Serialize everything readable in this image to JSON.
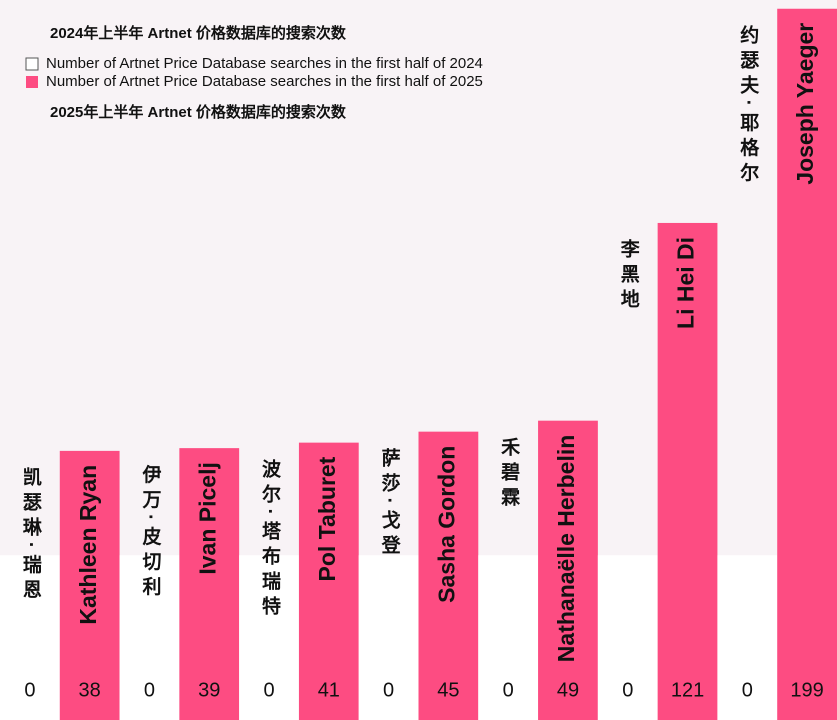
{
  "chart_data": {
    "type": "bar",
    "annotations": [
      "2024年上半年 Artnet 价格数据库的搜索次数",
      "2025年上半年 Artnet 价格数据库的搜索次数"
    ],
    "categories": [
      "Kathleen Ryan",
      "Ivan Picelj",
      "Pol Taburet",
      "Sasha Gordon",
      "Nathanaëlle Herbelin",
      "Li Hei Di",
      "Joseph Yaeger"
    ],
    "category_labels_zh": [
      "凯瑟琳·瑞恩",
      "伊万·皮切利",
      "波尔·塔布瑞特",
      "萨莎·戈登",
      "禾碧霖",
      "李黑地",
      "约瑟夫·耶格尔"
    ],
    "series": [
      {
        "name": "Number of Artnet Price Database searches in the first half of 2024",
        "color": "#ffffff",
        "values": [
          0,
          0,
          0,
          0,
          0,
          0,
          0
        ]
      },
      {
        "name": "Number of Artnet Price Database searches in the first half of 2025",
        "color": "#fd4c82",
        "values": [
          38,
          39,
          41,
          45,
          49,
          121,
          199
        ]
      }
    ],
    "ylim": [
      -60,
      200
    ]
  }
}
